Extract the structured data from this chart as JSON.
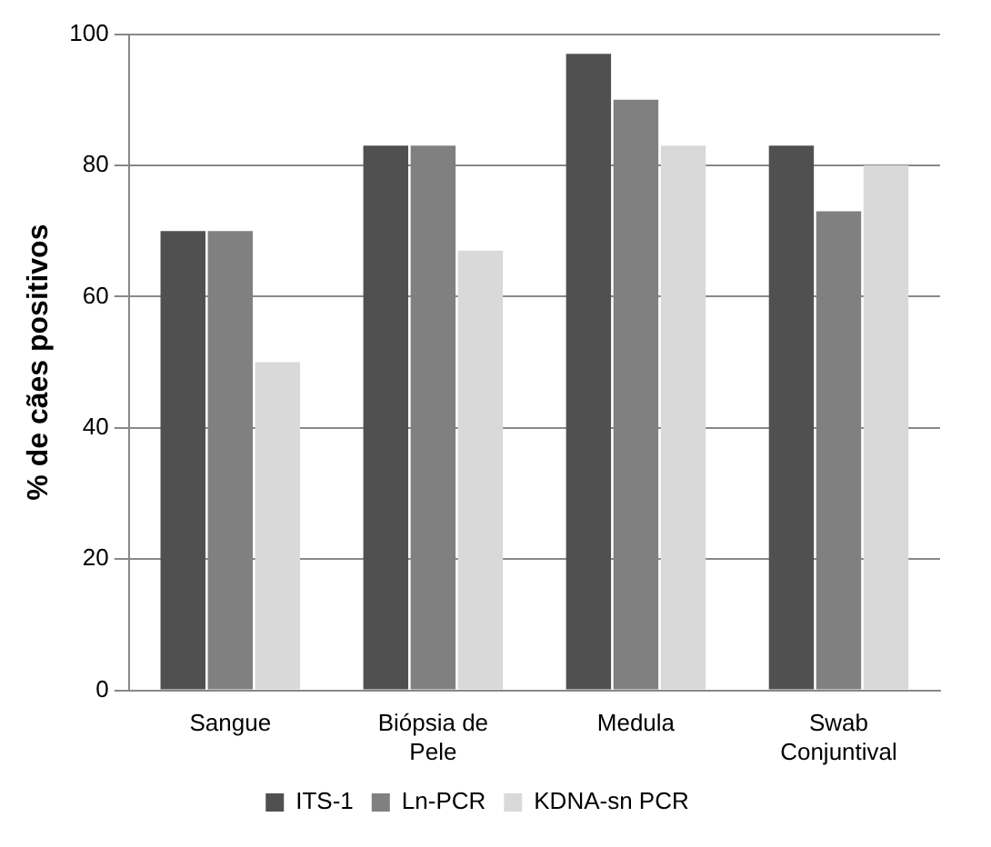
{
  "chart_data": {
    "type": "bar",
    "ylabel": "% de cães positivos",
    "categories": [
      "Sangue",
      "Biópsia de Pele",
      "Medula",
      "Swab Conjuntival"
    ],
    "series": [
      {
        "name": "ITS-1",
        "color": "#505050",
        "values": [
          70,
          83,
          97,
          83
        ]
      },
      {
        "name": "Ln-PCR",
        "color": "#808080",
        "values": [
          70,
          83,
          90,
          73
        ]
      },
      {
        "name": "KDNA-sn PCR",
        "color": "#d9d9d9",
        "values": [
          50,
          67,
          83,
          80
        ]
      }
    ],
    "ylim": [
      0,
      100
    ],
    "yticks": [
      0,
      20,
      40,
      60,
      80,
      100
    ],
    "grid": "y",
    "legend": "bottom"
  }
}
